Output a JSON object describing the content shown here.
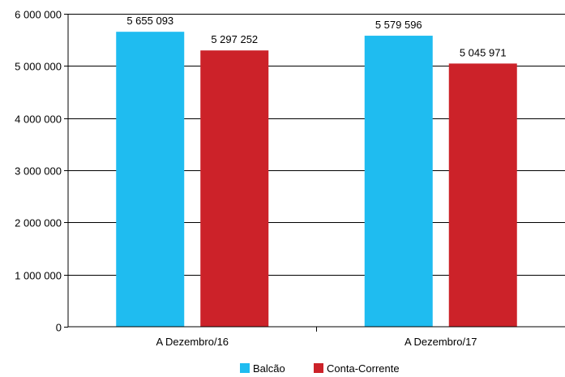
{
  "chart_data": {
    "type": "bar",
    "categories": [
      "A Dezembro/16",
      "A Dezembro/17"
    ],
    "series": [
      {
        "name": "Balcão",
        "color": "#1fbcf0",
        "values": [
          5655093,
          5579596
        ],
        "labels": [
          "5 655 093",
          "5 579 596"
        ]
      },
      {
        "name": "Conta-Corrente",
        "color": "#cc2229",
        "values": [
          5297252,
          5045971
        ],
        "labels": [
          "5 297 252",
          "5 045 971"
        ]
      }
    ],
    "ylim": [
      0,
      6000000
    ],
    "yticks": [
      0,
      1000000,
      2000000,
      3000000,
      4000000,
      5000000,
      6000000
    ],
    "ytick_labels": [
      "0",
      "1 000 000",
      "2 000 000",
      "3 000 000",
      "4 000 000",
      "5 000 000",
      "6 000 000"
    ],
    "title": "",
    "xlabel": "",
    "ylabel": "",
    "grid": true,
    "legend_position": "bottom-center"
  }
}
